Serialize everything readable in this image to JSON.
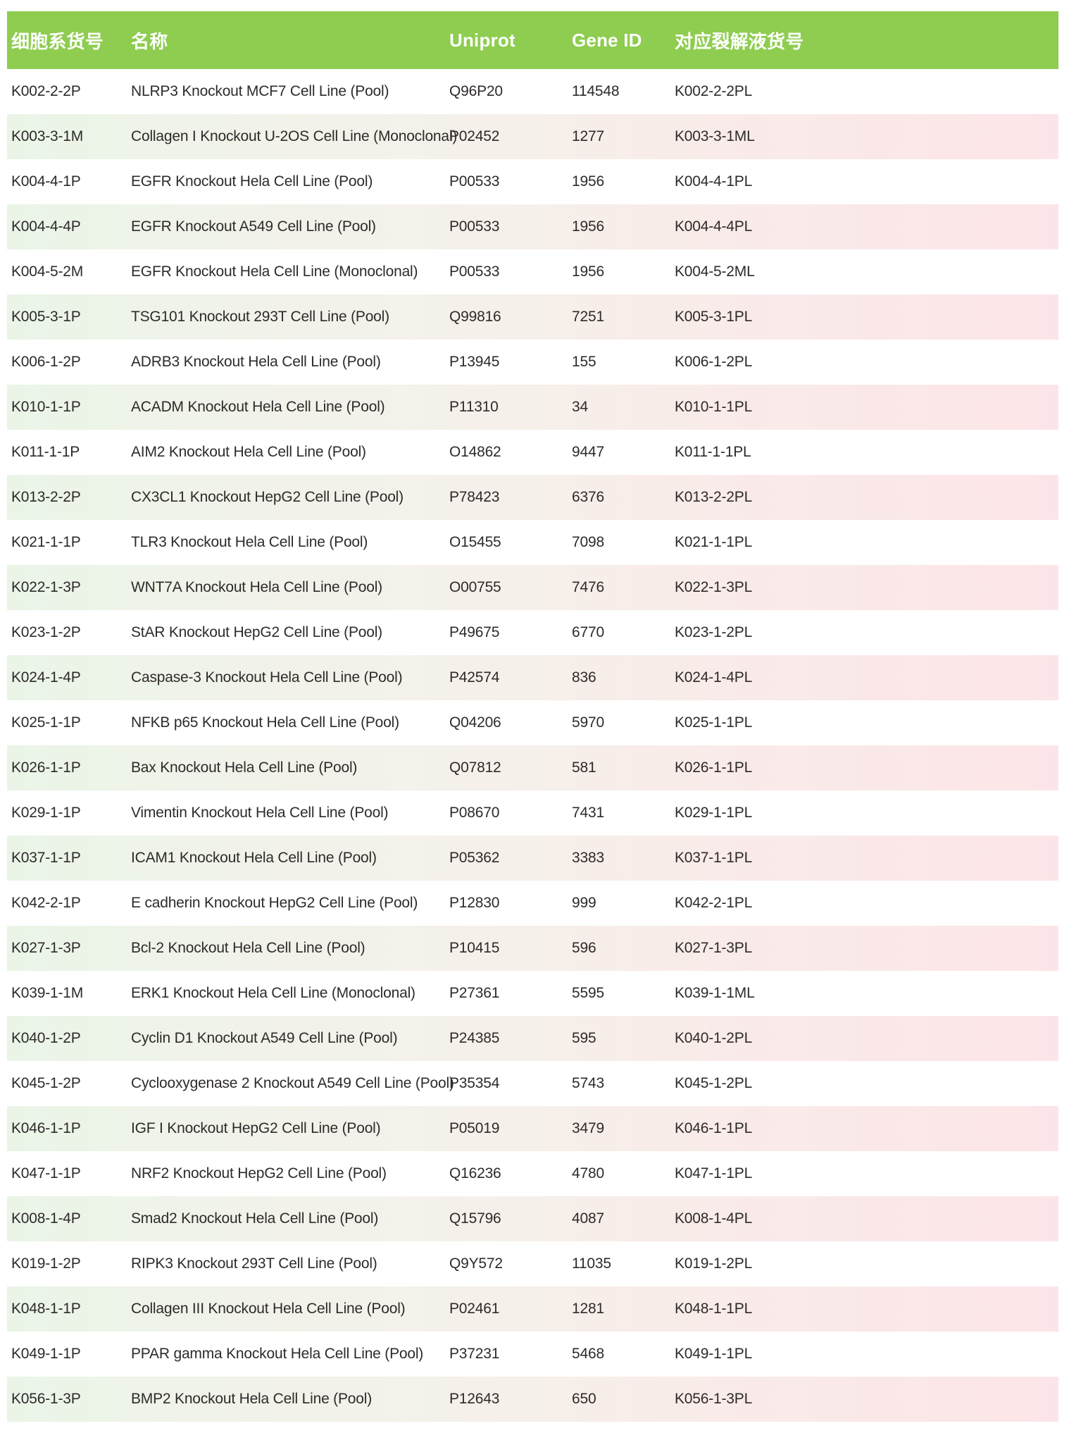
{
  "colors": {
    "header_bg": "#8ecd4f",
    "header_text": "#ffffff",
    "row_text": "#2e2a2b",
    "stripe_left": "#eaf5e8",
    "stripe_mid": "#f5f1ea",
    "stripe_right": "#fce5e8"
  },
  "table": {
    "columns": [
      {
        "key": "catalog",
        "label": "细胞系货号"
      },
      {
        "key": "name",
        "label": "名称"
      },
      {
        "key": "uniprot",
        "label": "Uniprot"
      },
      {
        "key": "gene_id",
        "label": "Gene ID"
      },
      {
        "key": "lysate",
        "label": "对应裂解液货号"
      }
    ],
    "rows": [
      [
        "K002-2-2P",
        "NLRP3 Knockout MCF7 Cell Line (Pool)",
        "Q96P20",
        "114548",
        "K002-2-2PL"
      ],
      [
        "K003-3-1M",
        "Collagen I Knockout U-2OS Cell Line (Monoclonal)",
        "P02452",
        "1277",
        "K003-3-1ML"
      ],
      [
        "K004-4-1P",
        "EGFR Knockout Hela Cell Line (Pool)",
        "P00533",
        "1956",
        "K004-4-1PL"
      ],
      [
        "K004-4-4P",
        "EGFR Knockout A549 Cell Line (Pool)",
        "P00533",
        "1956",
        "K004-4-4PL"
      ],
      [
        "K004-5-2M",
        "EGFR Knockout Hela Cell Line (Monoclonal)",
        "P00533",
        "1956",
        "K004-5-2ML"
      ],
      [
        "K005-3-1P",
        "TSG101 Knockout 293T Cell Line (Pool)",
        "Q99816",
        "7251",
        "K005-3-1PL"
      ],
      [
        "K006-1-2P",
        "ADRB3 Knockout Hela Cell Line (Pool)",
        "P13945",
        "155",
        "K006-1-2PL"
      ],
      [
        "K010-1-1P",
        "ACADM Knockout Hela Cell Line (Pool)",
        "P11310",
        "34",
        "K010-1-1PL"
      ],
      [
        "K011-1-1P",
        "AIM2 Knockout Hela Cell Line (Pool)",
        "O14862",
        "9447",
        "K011-1-1PL"
      ],
      [
        "K013-2-2P",
        "CX3CL1 Knockout HepG2 Cell Line (Pool)",
        "P78423",
        "6376",
        "K013-2-2PL"
      ],
      [
        "K021-1-1P",
        "TLR3 Knockout Hela Cell Line (Pool)",
        "O15455",
        "7098",
        "K021-1-1PL"
      ],
      [
        "K022-1-3P",
        "WNT7A Knockout Hela Cell Line (Pool)",
        "O00755",
        "7476",
        "K022-1-3PL"
      ],
      [
        "K023-1-2P",
        "StAR Knockout HepG2 Cell Line (Pool)",
        "P49675",
        "6770",
        "K023-1-2PL"
      ],
      [
        "K024-1-4P",
        "Caspase-3 Knockout Hela Cell Line (Pool)",
        "P42574",
        "836",
        "K024-1-4PL"
      ],
      [
        "K025-1-1P",
        "NFKB p65 Knockout Hela Cell Line (Pool)",
        "Q04206",
        "5970",
        "K025-1-1PL"
      ],
      [
        "K026-1-1P",
        "Bax Knockout Hela Cell Line (Pool)",
        "Q07812",
        "581",
        "K026-1-1PL"
      ],
      [
        "K029-1-1P",
        "Vimentin Knockout Hela Cell Line (Pool)",
        "P08670",
        "7431",
        "K029-1-1PL"
      ],
      [
        "K037-1-1P",
        "ICAM1 Knockout Hela Cell Line (Pool)",
        "P05362",
        "3383",
        "K037-1-1PL"
      ],
      [
        "K042-2-1P",
        "E cadherin Knockout HepG2 Cell Line (Pool)",
        "P12830",
        "999",
        "K042-2-1PL"
      ],
      [
        "K027-1-3P",
        "Bcl-2 Knockout Hela Cell Line (Pool)",
        "P10415",
        "596",
        "K027-1-3PL"
      ],
      [
        "K039-1-1M",
        "ERK1 Knockout Hela Cell Line (Monoclonal)",
        "P27361",
        "5595",
        "K039-1-1ML"
      ],
      [
        "K040-1-2P",
        "Cyclin D1 Knockout A549 Cell Line (Pool)",
        "P24385",
        "595",
        "K040-1-2PL"
      ],
      [
        "K045-1-2P",
        "Cyclooxygenase 2 Knockout A549 Cell Line (Pool)",
        "P35354",
        "5743",
        "K045-1-2PL"
      ],
      [
        "K046-1-1P",
        "IGF I Knockout HepG2 Cell Line (Pool)",
        "P05019",
        "3479",
        "K046-1-1PL"
      ],
      [
        "K047-1-1P",
        "NRF2 Knockout HepG2 Cell Line (Pool)",
        "Q16236",
        "4780",
        "K047-1-1PL"
      ],
      [
        "K008-1-4P",
        "Smad2 Knockout Hela Cell Line (Pool)",
        "Q15796",
        "4087",
        "K008-1-4PL"
      ],
      [
        "K019-1-2P",
        "RIPK3 Knockout 293T Cell Line (Pool)",
        "Q9Y572",
        "11035",
        "K019-1-2PL"
      ],
      [
        "K048-1-1P",
        "Collagen III Knockout Hela Cell Line (Pool)",
        "P02461",
        "1281",
        "K048-1-1PL"
      ],
      [
        "K049-1-1P",
        "PPAR gamma Knockout Hela Cell Line (Pool)",
        "P37231",
        "5468",
        "K049-1-1PL"
      ],
      [
        "K056-1-3P",
        "BMP2 Knockout Hela Cell Line (Pool)",
        "P12643",
        "650",
        "K056-1-3PL"
      ]
    ]
  }
}
